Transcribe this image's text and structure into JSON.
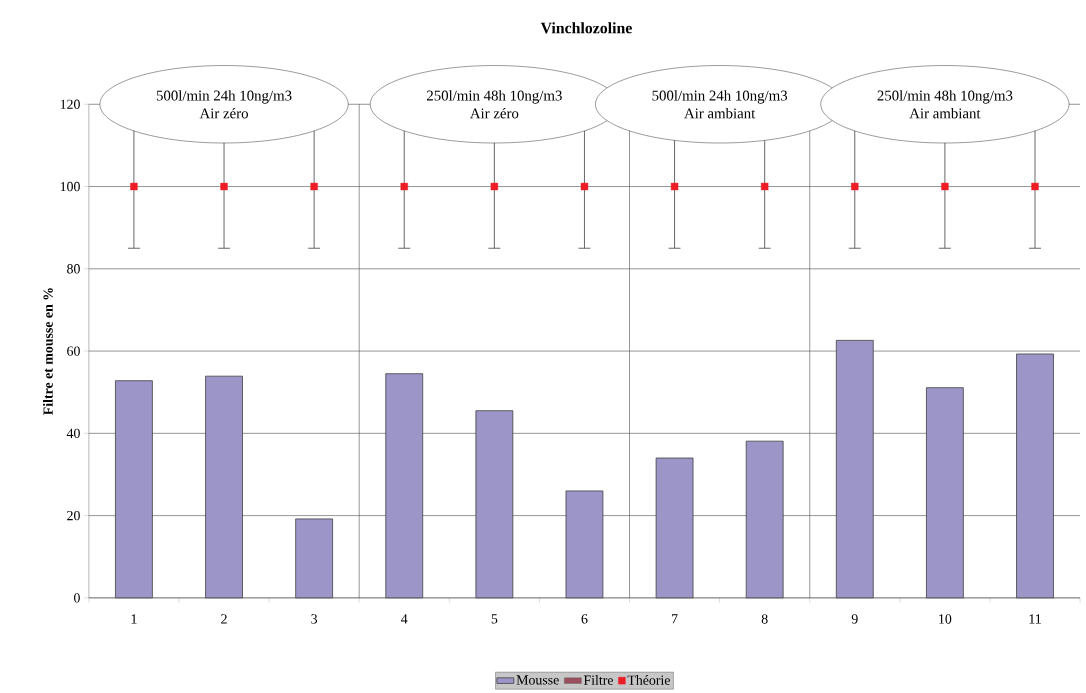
{
  "chart_data": {
    "type": "bar",
    "title": "Vinchlozoline",
    "ylabel": "Filtre et mousse en %",
    "x": [
      1,
      2,
      3,
      4,
      5,
      6,
      7,
      8,
      9,
      10,
      11
    ],
    "xlim": [
      0.5,
      11.5
    ],
    "xticks": [
      1,
      2,
      3,
      4,
      5,
      6,
      7,
      8,
      9,
      10,
      11
    ],
    "ylim": [
      0,
      120
    ],
    "yticks": [
      0,
      20,
      40,
      60,
      80,
      100,
      120
    ],
    "grid": "y",
    "legend": "bottom",
    "series": [
      {
        "name": "Mousse",
        "color": "#9c96c8",
        "values": [
          52.8,
          53.9,
          19.2,
          54.5,
          45.5,
          26.0,
          34.0,
          38.1,
          62.6,
          51.1,
          59.3
        ]
      },
      {
        "name": "Filtre",
        "color": "#9c4f5e",
        "values": [
          null,
          null,
          null,
          null,
          null,
          null,
          null,
          null,
          null,
          null,
          null
        ]
      },
      {
        "name": "Théorie",
        "type": "scatter",
        "color": "#ee1c24",
        "marker": "square",
        "values": [
          100,
          100,
          100,
          100,
          100,
          100,
          100,
          100,
          100,
          100,
          100
        ],
        "errors": [
          15,
          15,
          15,
          15,
          15,
          15,
          15,
          15,
          15,
          15,
          15
        ]
      }
    ],
    "ref_lines": [
      {
        "axis": "x",
        "value": 3.5
      },
      {
        "axis": "x",
        "value": 6.5
      },
      {
        "axis": "x",
        "value": 8.5
      }
    ],
    "annotations": [
      "500l/min 24h 10ng/m3",
      "Air zéro",
      "250l/min 48h 10ng/m3",
      "Air zéro",
      "500l/min 24h 10ng/m3",
      "Air ambiant",
      "250l/min 48h 10ng/m3",
      "Air ambiant"
    ]
  }
}
